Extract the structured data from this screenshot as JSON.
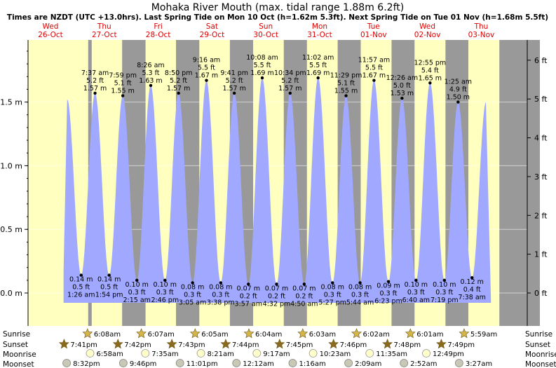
{
  "chart_data": {
    "type": "area",
    "title": "Mohaka River Mouth (max. tidal range 1.88m 6.2ft)",
    "subtitle": "Times are NZDT (UTC +13.0hrs). Last Spring Tide on Mon 10 Oct (h=1.62m 5.3ft). Next Spring Tide on Tue 01 Nov (h=1.68m 5.5ft)",
    "start_day": "Wed 26-Oct 00:00",
    "x_unit": "hours since Wed 26-Oct 00:00",
    "ylabel_left": "m",
    "ylabel_right": "ft",
    "ylim_m": [
      -0.08,
      1.95
    ],
    "y_ticks_m": [
      "0.0 m",
      "0.5 m",
      "1.0 m",
      "1.5 m"
    ],
    "y_ticks_ft": [
      "0 ft",
      "1 ft",
      "2 ft",
      "3 ft",
      "4 ft",
      "5 ft",
      "6 ft"
    ],
    "days": [
      {
        "dow": "Wed",
        "date": "26-Oct"
      },
      {
        "dow": "Thu",
        "date": "27-Oct"
      },
      {
        "dow": "Fri",
        "date": "28-Oct"
      },
      {
        "dow": "Sat",
        "date": "29-Oct"
      },
      {
        "dow": "Sun",
        "date": "30-Oct"
      },
      {
        "dow": "Mon",
        "date": "31-Oct"
      },
      {
        "dow": "Tue",
        "date": "01-Nov"
      },
      {
        "dow": "Wed",
        "date": "02-Nov"
      },
      {
        "dow": "Thu",
        "date": "03-Nov"
      }
    ],
    "tides": [
      {
        "kind": "high",
        "t": 19.2,
        "time": "",
        "ft": "",
        "m": "",
        "h": 1.52,
        "labeled": false
      },
      {
        "kind": "low",
        "t": 25.43,
        "time": "1:26 am",
        "ft": "0.5 ft",
        "m": "0.14 m",
        "h": 0.14,
        "labeled": true
      },
      {
        "kind": "high",
        "t": 31.62,
        "time": "7:37 am",
        "ft": "5.2 ft",
        "m": "1.57 m",
        "h": 1.57,
        "labeled": true
      },
      {
        "kind": "low",
        "t": 37.9,
        "time": "1:54 pm",
        "ft": "0.5 ft",
        "m": "0.14 m",
        "h": 0.14,
        "labeled": true
      },
      {
        "kind": "high",
        "t": 43.98,
        "time": "7:59 pm",
        "ft": "5.1 ft",
        "m": "1.55 m",
        "h": 1.55,
        "labeled": true
      },
      {
        "kind": "low",
        "t": 50.25,
        "time": "2:15 am",
        "ft": "0.3 ft",
        "m": "0.10 m",
        "h": 0.1,
        "labeled": true
      },
      {
        "kind": "high",
        "t": 56.43,
        "time": "8:26 am",
        "ft": "5.3 ft",
        "m": "1.63 m",
        "h": 1.63,
        "labeled": true
      },
      {
        "kind": "low",
        "t": 62.77,
        "time": "2:46 pm",
        "ft": "0.3 ft",
        "m": "0.10 m",
        "h": 0.1,
        "labeled": true
      },
      {
        "kind": "high",
        "t": 68.83,
        "time": "8:50 pm",
        "ft": "5.2 ft",
        "m": "1.57 m",
        "h": 1.57,
        "labeled": true
      },
      {
        "kind": "low",
        "t": 75.08,
        "time": "3:05 am",
        "ft": "0.3 ft",
        "m": "0.08 m",
        "h": 0.08,
        "labeled": true
      },
      {
        "kind": "high",
        "t": 81.27,
        "time": "9:16 am",
        "ft": "5.5 ft",
        "m": "1.67 m",
        "h": 1.67,
        "labeled": true
      },
      {
        "kind": "low",
        "t": 87.63,
        "time": "3:38 pm",
        "ft": "0.3 ft",
        "m": "0.08 m",
        "h": 0.08,
        "labeled": true
      },
      {
        "kind": "high",
        "t": 93.68,
        "time": "9:41 pm",
        "ft": "5.2 ft",
        "m": "1.57 m",
        "h": 1.57,
        "labeled": true
      },
      {
        "kind": "low",
        "t": 99.95,
        "time": "3:57 am",
        "ft": "0.2 ft",
        "m": "0.07 m",
        "h": 0.07,
        "labeled": true
      },
      {
        "kind": "high",
        "t": 106.13,
        "time": "10:08 am",
        "ft": "5.5 ft",
        "m": "1.69 m",
        "h": 1.69,
        "labeled": true
      },
      {
        "kind": "low",
        "t": 112.53,
        "time": "4:32 pm",
        "ft": "0.2 ft",
        "m": "0.07 m",
        "h": 0.07,
        "labeled": true
      },
      {
        "kind": "high",
        "t": 118.57,
        "time": "10:34 pm",
        "ft": "5.2 ft",
        "m": "1.57 m",
        "h": 1.57,
        "labeled": true
      },
      {
        "kind": "low",
        "t": 124.83,
        "time": "4:50 am",
        "ft": "0.2 ft",
        "m": "0.07 m",
        "h": 0.07,
        "labeled": true
      },
      {
        "kind": "high",
        "t": 131.03,
        "time": "11:02 am",
        "ft": "5.5 ft",
        "m": "1.69 m",
        "h": 1.69,
        "labeled": true
      },
      {
        "kind": "low",
        "t": 137.45,
        "time": "5:27 pm",
        "ft": "0.3 ft",
        "m": "0.08 m",
        "h": 0.08,
        "labeled": true
      },
      {
        "kind": "high",
        "t": 143.48,
        "time": "11:29 pm",
        "ft": "5.1 ft",
        "m": "1.55 m",
        "h": 1.55,
        "labeled": true
      },
      {
        "kind": "low",
        "t": 149.73,
        "time": "5:44 am",
        "ft": "0.3 ft",
        "m": "0.08 m",
        "h": 0.08,
        "labeled": true
      },
      {
        "kind": "high",
        "t": 155.95,
        "time": "11:57 am",
        "ft": "5.5 ft",
        "m": "1.67 m",
        "h": 1.67,
        "labeled": true
      },
      {
        "kind": "low",
        "t": 162.38,
        "time": "6:23 pm",
        "ft": "0.3 ft",
        "m": "0.09 m",
        "h": 0.09,
        "labeled": true
      },
      {
        "kind": "high",
        "t": 168.43,
        "time": "12:26 am",
        "ft": "5.0 ft",
        "m": "1.53 m",
        "h": 1.53,
        "labeled": true
      },
      {
        "kind": "low",
        "t": 174.67,
        "time": "6:40 am",
        "ft": "0.3 ft",
        "m": "0.10 m",
        "h": 0.1,
        "labeled": true
      },
      {
        "kind": "high",
        "t": 180.92,
        "time": "12:55 pm",
        "ft": "5.4 ft",
        "m": "1.65 m",
        "h": 1.65,
        "labeled": true
      },
      {
        "kind": "low",
        "t": 187.32,
        "time": "7:19 pm",
        "ft": "0.3 ft",
        "m": "0.10 m",
        "h": 0.1,
        "labeled": true
      },
      {
        "kind": "high",
        "t": 193.42,
        "time": "1:25 am",
        "ft": "4.9 ft",
        "m": "1.50 m",
        "h": 1.5,
        "labeled": true
      },
      {
        "kind": "low",
        "t": 199.63,
        "time": "7:38 am",
        "ft": "0.4 ft",
        "m": "0.12 m",
        "h": 0.12,
        "labeled": true
      },
      {
        "kind": "high",
        "t": 205.9,
        "time": "",
        "ft": "",
        "m": "",
        "h": 1.5,
        "labeled": false
      }
    ],
    "daylight": [
      {
        "rise": 30.13,
        "set": 43.68
      },
      {
        "rise": 54.12,
        "set": 67.7
      },
      {
        "rise": 78.08,
        "set": 91.72
      },
      {
        "rise": 102.07,
        "set": 115.73
      },
      {
        "rise": 126.05,
        "set": 139.75
      },
      {
        "rise": 150.03,
        "set": 163.77
      },
      {
        "rise": 174.02,
        "set": 187.8
      },
      {
        "rise": 198.0,
        "set": 211.82
      }
    ],
    "astro_labels": {
      "sunrise": "Sunrise",
      "sunset": "Sunset",
      "moonrise": "Moonrise",
      "moonset": "Moonset"
    },
    "sunrise": [
      {
        "t": 30.13,
        "label": "6:08am"
      },
      {
        "t": 54.12,
        "label": "6:07am"
      },
      {
        "t": 78.08,
        "label": "6:05am"
      },
      {
        "t": 102.07,
        "label": "6:04am"
      },
      {
        "t": 126.05,
        "label": "6:03am"
      },
      {
        "t": 150.03,
        "label": "6:02am"
      },
      {
        "t": 174.02,
        "label": "6:01am"
      },
      {
        "t": 197.98,
        "label": "5:59am"
      }
    ],
    "sunset": [
      {
        "t": 19.68,
        "label": "7:41pm"
      },
      {
        "t": 43.7,
        "label": "7:42pm"
      },
      {
        "t": 67.72,
        "label": "7:43pm"
      },
      {
        "t": 91.73,
        "label": "7:44pm"
      },
      {
        "t": 115.75,
        "label": "7:45pm"
      },
      {
        "t": 139.77,
        "label": "7:46pm"
      },
      {
        "t": 163.8,
        "label": "7:48pm"
      },
      {
        "t": 187.82,
        "label": "7:49pm"
      }
    ],
    "moonrise": [
      {
        "t": 30.97,
        "label": "6:58am"
      },
      {
        "t": 55.58,
        "label": "7:35am"
      },
      {
        "t": 80.35,
        "label": "8:21am"
      },
      {
        "t": 105.28,
        "label": "9:17am"
      },
      {
        "t": 130.38,
        "label": "10:23am"
      },
      {
        "t": 155.58,
        "label": "11:35am"
      },
      {
        "t": 180.82,
        "label": "12:49pm"
      }
    ],
    "moonset": [
      {
        "t": 20.53,
        "label": "8:32pm"
      },
      {
        "t": 45.77,
        "label": "9:46pm"
      },
      {
        "t": 71.02,
        "label": "11:01pm"
      },
      {
        "t": 96.2,
        "label": "12:12am"
      },
      {
        "t": 121.27,
        "label": "1:16am"
      },
      {
        "t": 146.15,
        "label": "2:09am"
      },
      {
        "t": 170.87,
        "label": "2:52am"
      },
      {
        "t": 195.45,
        "label": "3:27am"
      }
    ]
  }
}
